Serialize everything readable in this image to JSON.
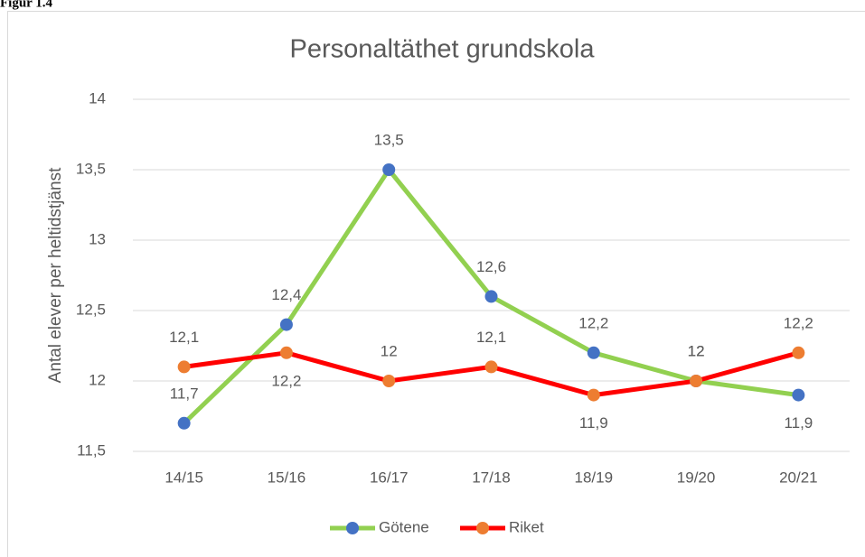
{
  "figure_label": "Figur 1.4",
  "chart_data": {
    "type": "line",
    "title": "Personaltäthet grundskola",
    "y_label": "Antal elever per heltidstjänst",
    "categories": [
      "14/15",
      "15/16",
      "16/17",
      "17/18",
      "18/19",
      "19/20",
      "20/21"
    ],
    "series": [
      {
        "name": "Götene",
        "color": "#92d050",
        "marker_color": "#4472c4",
        "values": [
          11.7,
          12.4,
          13.5,
          12.6,
          12.2,
          12,
          11.9
        ],
        "value_labels": [
          "11,7",
          "12,4",
          "13,5",
          "12,6",
          "12,2",
          "12",
          "11,9"
        ]
      },
      {
        "name": "Riket",
        "color": "#ff0000",
        "marker_color": "#ed7d31",
        "values": [
          12.1,
          12.2,
          12,
          12.1,
          11.9,
          12,
          12.2
        ],
        "value_labels": [
          "12,1",
          "12,2",
          "12",
          "12,1",
          "11,9",
          "12",
          "12,2"
        ]
      }
    ],
    "ylim": [
      11.5,
      14
    ],
    "yticks": [
      {
        "value": 11.5,
        "label": "11,5"
      },
      12,
      {
        "value": 12.5,
        "label": "12,5"
      },
      13,
      {
        "value": 13.5,
        "label": "13,5"
      },
      14
    ],
    "grid": true,
    "legend": "bottom"
  }
}
